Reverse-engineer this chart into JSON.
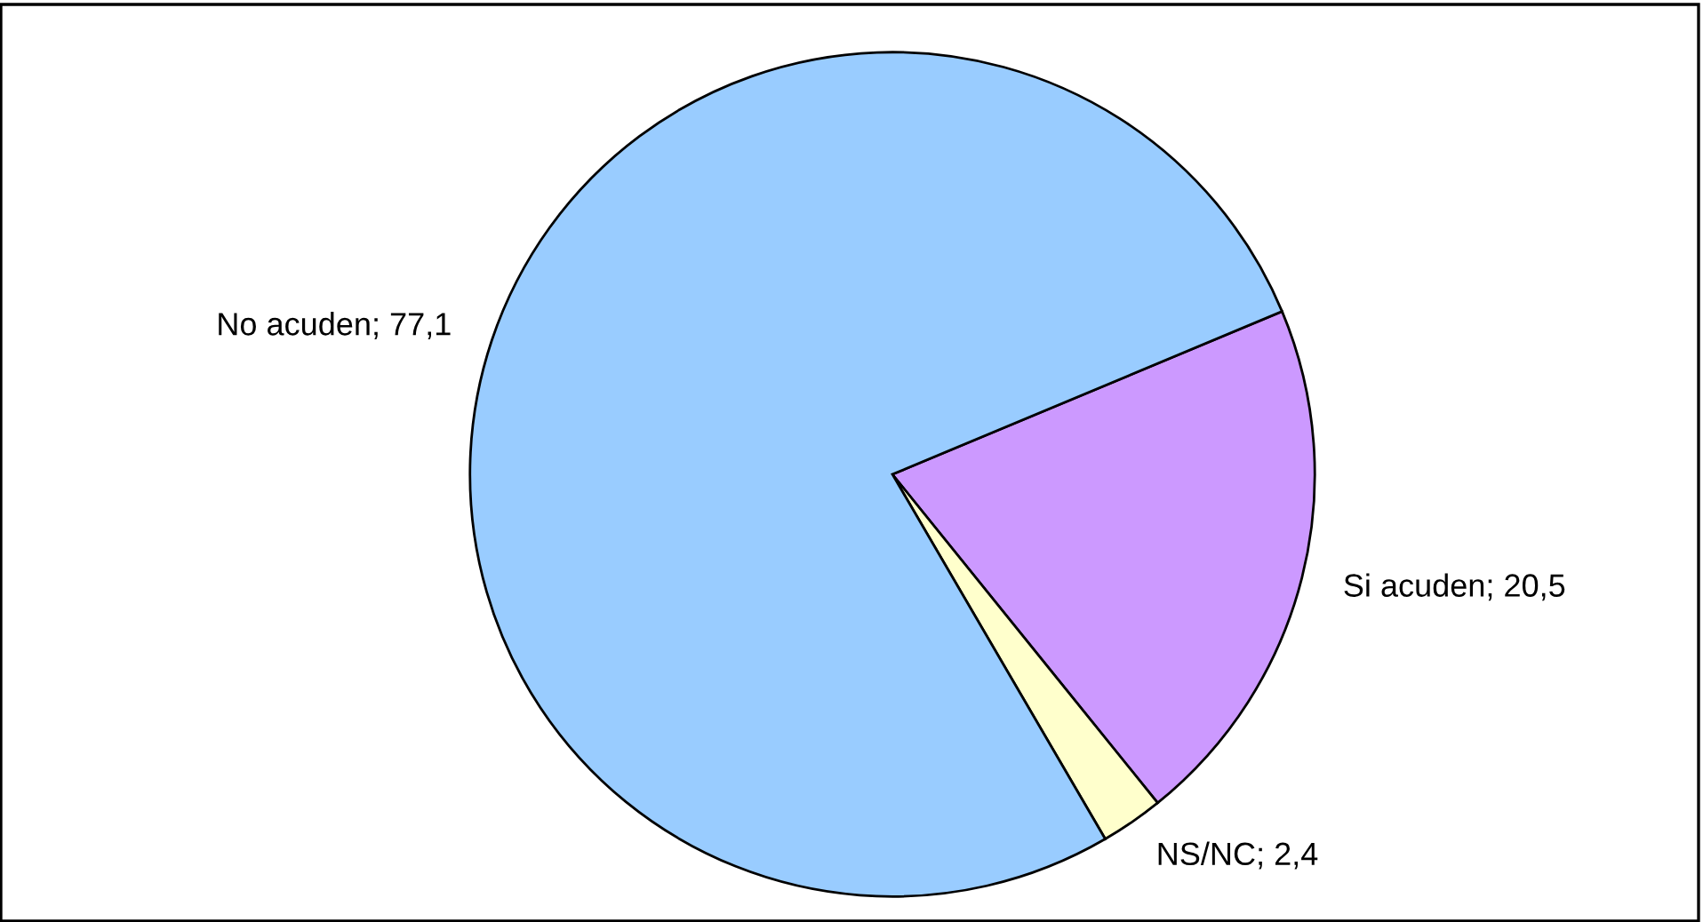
{
  "chart_data": {
    "type": "pie",
    "categories": [
      "Si acuden",
      "NS/NC",
      "No acuden"
    ],
    "values": [
      20.5,
      2.4,
      77.1
    ],
    "value_labels": [
      "20,5",
      "2,4",
      "77,1"
    ],
    "colors": [
      "#cc99ff",
      "#ffffcc",
      "#99ccff"
    ],
    "legend": false
  }
}
